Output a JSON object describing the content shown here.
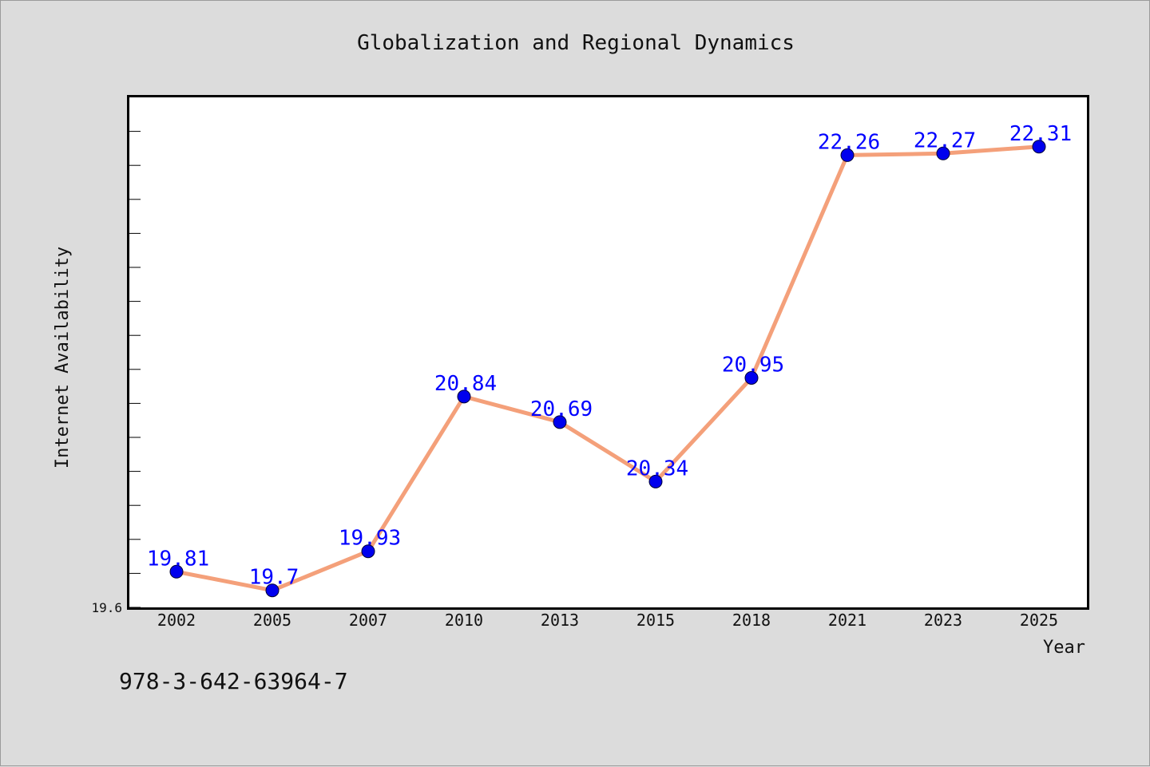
{
  "chart_data": {
    "type": "line",
    "title": "Globalization and Regional Dynamics",
    "xlabel": "Year",
    "ylabel": "Internet Availability",
    "categories": [
      "2002",
      "2005",
      "2007",
      "2010",
      "2013",
      "2015",
      "2018",
      "2021",
      "2023",
      "2025"
    ],
    "series": [
      {
        "values": [
          19.81,
          19.7,
          19.93,
          20.84,
          20.69,
          20.34,
          20.95,
          22.26,
          22.27,
          22.31
        ],
        "labels": [
          "19.81",
          "19.7",
          "19.93",
          "20.84",
          "20.69",
          "20.34",
          "20.95",
          "22.26",
          "22.27",
          "22.31"
        ]
      }
    ],
    "ylim": [
      19.6,
      22.6
    ],
    "y_min_label": "19.6",
    "grid": false,
    "legend": "none",
    "colors": {
      "line": "#f4a07a",
      "marker": "#0000ee",
      "data_label": "#0000ff",
      "plot_bg": "#ffffff",
      "page_bg": "#dcdcdc"
    }
  },
  "footnote": "978-3-642-63964-7"
}
